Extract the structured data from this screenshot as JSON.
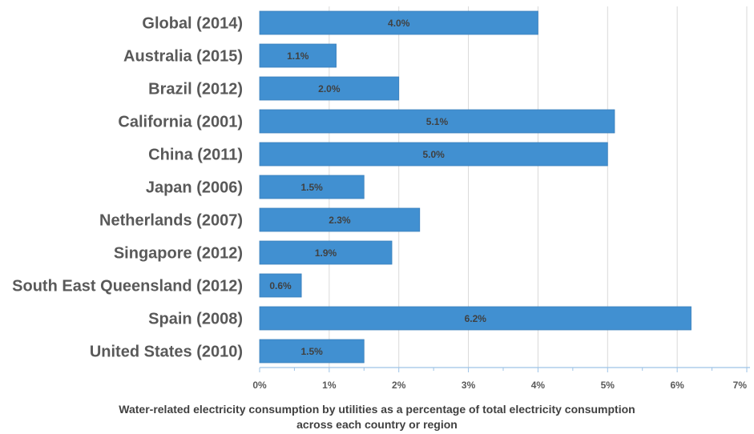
{
  "chart_data": {
    "type": "bar",
    "orientation": "horizontal",
    "categories": [
      "Global (2014)",
      "Australia (2015)",
      "Brazil (2012)",
      "California (2001)",
      "China (2011)",
      "Japan (2006)",
      "Netherlands (2007)",
      "Singapore (2012)",
      "South East Queensland (2012)",
      "Spain (2008)",
      "United States (2010)"
    ],
    "values": [
      4.0,
      1.1,
      2.0,
      5.1,
      5.0,
      1.5,
      2.3,
      1.9,
      0.6,
      6.2,
      1.5
    ],
    "data_labels": [
      "4.0%",
      "1.1%",
      "2.0%",
      "5.1%",
      "5.0%",
      "1.5%",
      "2.3%",
      "1.9%",
      "0.6%",
      "6.2%",
      "1.5%"
    ],
    "xlim": [
      0,
      7
    ],
    "xticks": [
      0,
      1,
      2,
      3,
      4,
      5,
      6,
      7
    ],
    "xtick_labels": [
      "0%",
      "1%",
      "2%",
      "3%",
      "4%",
      "5%",
      "6%",
      "7%"
    ],
    "xlabel_line1": "Water-related electricity consumption by utilities as a percentage of total electricity consumption",
    "xlabel_line2": "across each country or region",
    "title": "",
    "ylabel": "",
    "grid": "vertical",
    "legend": "none",
    "colors": {
      "bar": "#4190D1",
      "bar_edge": "#3A7FBB",
      "grid": "#D9D9D9",
      "axis": "#9DC3E6",
      "category_text": "#595959",
      "label_text": "#404040"
    }
  }
}
